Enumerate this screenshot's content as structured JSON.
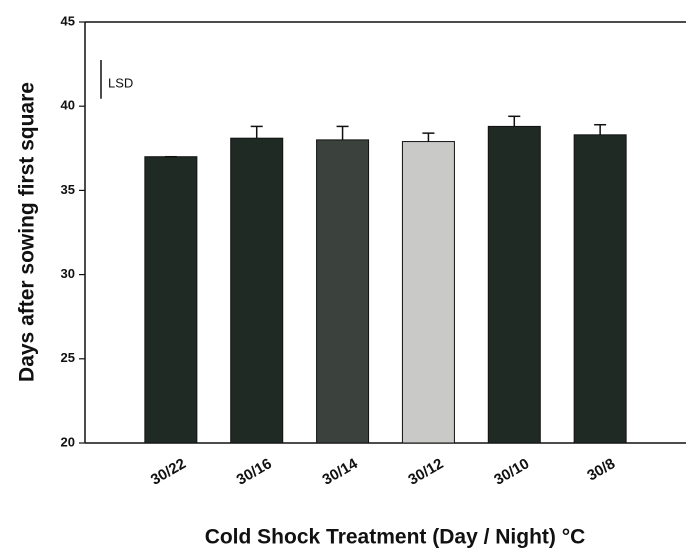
{
  "chart_data": {
    "type": "bar",
    "x_label": "Cold Shock Treatment (Day / Night) °C",
    "y_label": "Days after sowing first square",
    "categories": [
      "30/22",
      "30/16",
      "30/14",
      "30/12",
      "30/10",
      "30/8"
    ],
    "values": [
      37.0,
      38.1,
      38.0,
      37.9,
      38.8,
      38.3
    ],
    "errors": [
      0,
      0.7,
      0.8,
      0.5,
      0.6,
      0.6
    ],
    "colors": [
      "#1f2a25",
      "#1f2a25",
      "#3b423e",
      "#c9c9c7",
      "#1f2a25",
      "#1f2a25"
    ],
    "lsd": {
      "label": "LSD",
      "value": 2.3
    },
    "ylim": [
      20,
      45
    ],
    "yticks": [
      20,
      25,
      30,
      35,
      40,
      45
    ]
  }
}
